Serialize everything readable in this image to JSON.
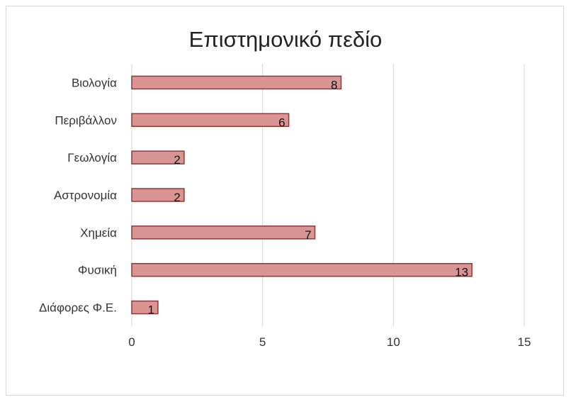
{
  "chart_data": {
    "type": "bar",
    "orientation": "horizontal",
    "title": "Επιστημονικό πεδίο",
    "categories": [
      "Βιολογία",
      "Περιβάλλον",
      "Γεωλογία",
      "Αστρονομία",
      "Χημεία",
      "Φυσική",
      "Διάφορες Φ.Ε."
    ],
    "values": [
      8,
      6,
      2,
      2,
      7,
      13,
      1
    ],
    "xlabel": "",
    "ylabel": "",
    "xlim": [
      0,
      15
    ],
    "xticks": [
      "0",
      "5",
      "10",
      "15"
    ],
    "grid": true,
    "legend": "none",
    "data_labels": true,
    "colors": {
      "bar_fill": "#d99594",
      "bar_stroke": "#943634",
      "grid": "#d9d9d9",
      "text": "#333333"
    }
  }
}
